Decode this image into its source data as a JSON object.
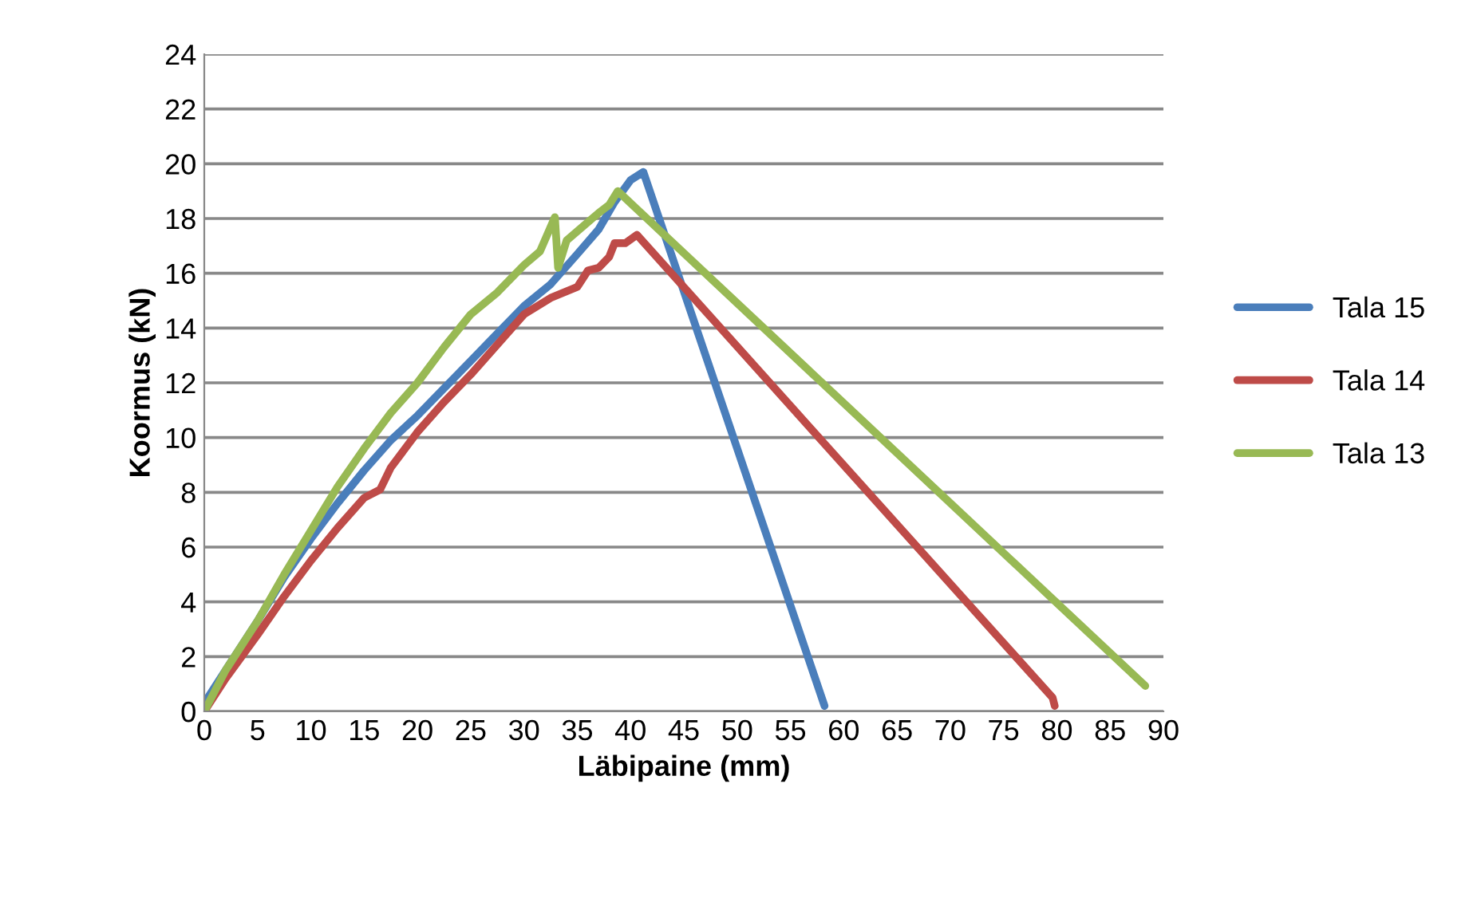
{
  "chart_data": {
    "type": "line",
    "xlabel": "Läbipaine (mm)",
    "ylabel": "Koormus (kN)",
    "xlim": [
      0,
      90
    ],
    "ylim": [
      0,
      24
    ],
    "xticks": [
      0,
      5,
      10,
      15,
      20,
      25,
      30,
      35,
      40,
      45,
      50,
      55,
      60,
      65,
      70,
      75,
      80,
      85,
      90
    ],
    "yticks": [
      0,
      2,
      4,
      6,
      8,
      10,
      12,
      14,
      16,
      18,
      20,
      22,
      24
    ],
    "grid": "y",
    "legend": "right",
    "marker": "none",
    "line_style": "solid",
    "series": [
      {
        "name": "Tala 15",
        "color": "#4a7ebb",
        "x": [
          0,
          2,
          5,
          7.5,
          10,
          12.5,
          15,
          17.5,
          20,
          22.5,
          25,
          27.5,
          30,
          32.5,
          35,
          37,
          38.5,
          40,
          41.2,
          58.2
        ],
        "values": [
          0.3,
          1.5,
          3.3,
          4.9,
          6.3,
          7.6,
          8.8,
          9.9,
          10.8,
          11.8,
          12.8,
          13.8,
          14.8,
          15.6,
          16.7,
          17.6,
          18.6,
          19.4,
          19.7,
          0.2
        ]
      },
      {
        "name": "Tala 14",
        "color": "#be4b48",
        "x": [
          0,
          2,
          5,
          7.5,
          10,
          12.5,
          15,
          16.5,
          17.5,
          20,
          22.5,
          25,
          27.5,
          30,
          32.5,
          35,
          36,
          37,
          38,
          38.5,
          39.5,
          40.6,
          79.6,
          79.8
        ],
        "values": [
          0,
          1.2,
          2.8,
          4.2,
          5.5,
          6.7,
          7.8,
          8.1,
          8.9,
          10.2,
          11.3,
          12.3,
          13.4,
          14.5,
          15.1,
          15.5,
          16.1,
          16.2,
          16.6,
          17.1,
          17.1,
          17.4,
          0.5,
          0.2
        ]
      },
      {
        "name": "Tala 13",
        "color": "#98b954",
        "x": [
          0,
          2,
          5,
          7.5,
          10,
          12.5,
          15,
          17.5,
          20,
          22.5,
          25,
          27.5,
          30,
          31.5,
          32.9,
          33.2,
          34,
          35.5,
          37,
          38,
          38.8,
          88.3
        ],
        "values": [
          0,
          1.5,
          3.3,
          5.0,
          6.6,
          8.2,
          9.6,
          10.9,
          12.0,
          13.3,
          14.5,
          15.3,
          16.3,
          16.8,
          18.05,
          16.2,
          17.2,
          17.7,
          18.2,
          18.5,
          19.0,
          0.93
        ]
      }
    ]
  }
}
